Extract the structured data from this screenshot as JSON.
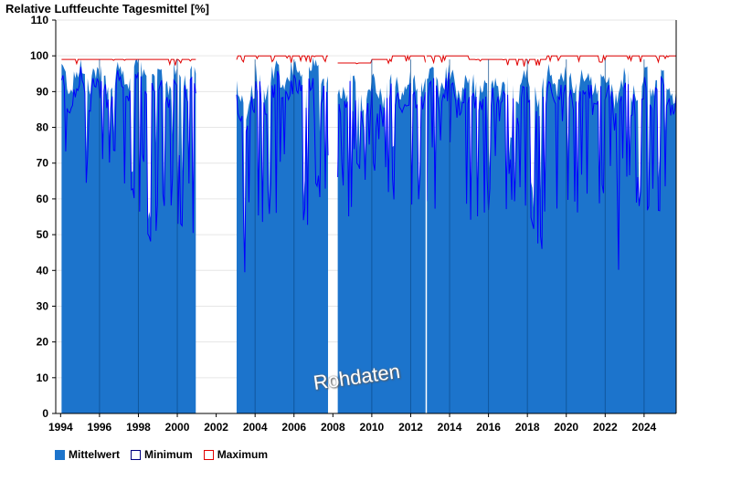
{
  "chart_data": {
    "type": "bar",
    "title": "Relative Luftfeuchte Tagesmittel [%]",
    "ylim": [
      0,
      110
    ],
    "yticks": [
      0,
      10,
      20,
      30,
      40,
      50,
      60,
      70,
      80,
      90,
      100,
      110
    ],
    "xlim": [
      1993.75,
      2025.65
    ],
    "xticks": [
      "1994",
      "1996",
      "1998",
      "2000",
      "2002",
      "2004",
      "2006",
      "2008",
      "2010",
      "2012",
      "2014",
      "2016",
      "2018",
      "2020",
      "2022",
      "2024"
    ],
    "xtick_values": [
      1994,
      1996,
      1998,
      2000,
      2002,
      2004,
      2006,
      2008,
      2010,
      2012,
      2014,
      2016,
      2018,
      2020,
      2022,
      2024
    ],
    "data_periods": [
      [
        1994.05,
        2000.95
      ],
      [
        2003.05,
        2007.75
      ],
      [
        2008.25,
        2025.65
      ]
    ],
    "series": [
      {
        "name": "Mittelwert",
        "color": "#1c74cc",
        "values": {
          "1994": 94,
          "1995": 95,
          "1996": 93,
          "1997": 94,
          "1998": 95,
          "1999": 94,
          "2000": 95,
          "2003": 88,
          "2004": 93,
          "2005": 94,
          "2006": 95,
          "2007": 95,
          "2008": 92,
          "2009": 90,
          "2010": 91,
          "2011": 92,
          "2012": 93,
          "2013": 93,
          "2014": 92,
          "2015": 92,
          "2016": 93,
          "2017": 92,
          "2018": 91,
          "2019": 93,
          "2020": 93,
          "2021": 93,
          "2022": 91,
          "2023": 92,
          "2024": 93,
          "2025": 92
        }
      },
      {
        "name": "Minimum",
        "color": "#0000ff",
        "values": {
          "1994": 64,
          "1995": 60,
          "1996": 70,
          "1997": 59,
          "1998": 47,
          "1999": 58,
          "2000": 48,
          "2003": 39,
          "2004": 52,
          "2005": 53,
          "2006": 52,
          "2007": 56,
          "2008": 53,
          "2009": 65,
          "2010": 60,
          "2011": 55,
          "2012": 58,
          "2013": 52,
          "2014": 55,
          "2015": 54,
          "2016": 57,
          "2017": 58,
          "2018": 46,
          "2019": 55,
          "2020": 56,
          "2021": 55,
          "2022": 40,
          "2023": 58,
          "2024": 56,
          "2025": 60
        }
      },
      {
        "name": "Maximum",
        "color": "#e00000",
        "values": {
          "1994": 99,
          "1995": 99,
          "1996": 99,
          "1997": 99,
          "1998": 99,
          "1999": 99,
          "2000": 99,
          "2003": 100,
          "2004": 100,
          "2005": 100,
          "2006": 100,
          "2007": 100,
          "2008": 98,
          "2009": 98,
          "2010": 99,
          "2011": 100,
          "2012": 100,
          "2013": 100,
          "2014": 100,
          "2015": 99,
          "2016": 99,
          "2017": 99,
          "2018": 99,
          "2019": 100,
          "2020": 100,
          "2021": 100,
          "2022": 100,
          "2023": 100,
          "2024": 100,
          "2025": 100
        }
      }
    ],
    "legend": {
      "position": "bottom-left",
      "items": [
        {
          "label": "Mittelwert",
          "style": "filled",
          "color": "#1c74cc"
        },
        {
          "label": "Minimum",
          "style": "outline",
          "color": "#000080"
        },
        {
          "label": "Maximum",
          "style": "outline",
          "color": "#e00000"
        }
      ]
    },
    "watermark": "Rohdaten",
    "grid": true
  }
}
